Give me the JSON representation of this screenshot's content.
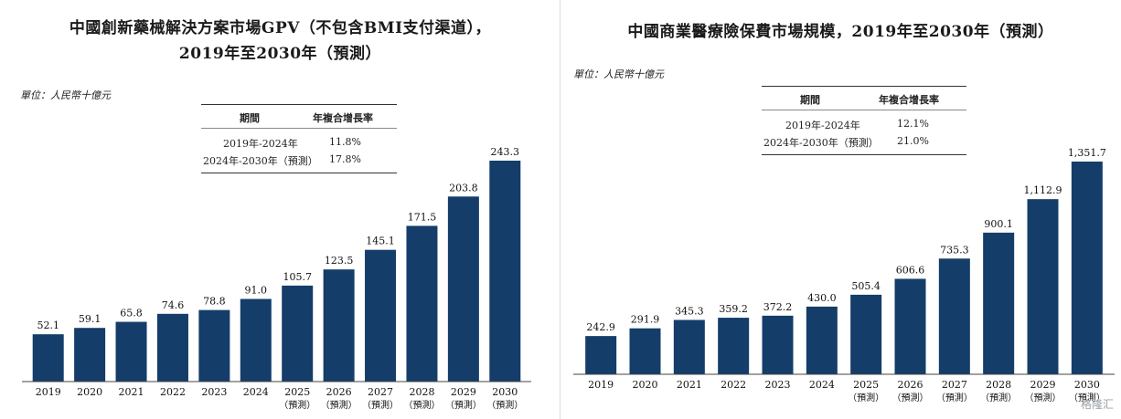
{
  "watermark": "格隆汇",
  "chart_data": [
    {
      "type": "bar",
      "title_line1": "中國創新藥械解決方案市場GPV（不包含BMI支付渠道），",
      "title_line2": "2019年至2030年（預測）",
      "unit": "單位：人民幣十億元",
      "xlabel": "",
      "ylabel": "",
      "categories": [
        "2019",
        "2020",
        "2021",
        "2022",
        "2023",
        "2024",
        "2025",
        "2026",
        "2027",
        "2028",
        "2029",
        "2030"
      ],
      "category_sublabels": [
        "",
        "",
        "",
        "",
        "",
        "",
        "（預測）",
        "（預測）",
        "（預測）",
        "（預測）",
        "（預測）",
        "（預測）"
      ],
      "values": [
        52.1,
        59.1,
        65.8,
        74.6,
        78.8,
        91.0,
        105.7,
        123.5,
        145.1,
        171.5,
        203.8,
        243.3
      ],
      "value_labels": [
        "52.1",
        "59.1",
        "65.8",
        "74.6",
        "78.8",
        "91.0",
        "105.7",
        "123.5",
        "145.1",
        "171.5",
        "203.8",
        "243.3"
      ],
      "color": "#143d69",
      "ylim": [
        0,
        243.3
      ],
      "grid": false,
      "cagr_table": {
        "headers": [
          "期間",
          "年複合增長率"
        ],
        "rows": [
          [
            "2019年-2024年",
            "11.8%"
          ],
          [
            "2024年-2030年（預測）",
            "17.8%"
          ]
        ]
      }
    },
    {
      "type": "bar",
      "title_line1": "中國商業醫療險保費市場規模，2019年至2030年（預測）",
      "title_line2": "",
      "unit": "單位：人民幣十億元",
      "xlabel": "",
      "ylabel": "",
      "categories": [
        "2019",
        "2020",
        "2021",
        "2022",
        "2023",
        "2024",
        "2025",
        "2026",
        "2027",
        "2028",
        "2029",
        "2030"
      ],
      "category_sublabels": [
        "",
        "",
        "",
        "",
        "",
        "",
        "（預測）",
        "（預測）",
        "（預測）",
        "（預測）",
        "（預測）",
        "（預測）"
      ],
      "values": [
        242.9,
        291.9,
        345.3,
        359.2,
        372.2,
        430.0,
        505.4,
        606.6,
        735.3,
        900.1,
        1112.9,
        1351.7
      ],
      "value_labels": [
        "242.9",
        "291.9",
        "345.3",
        "359.2",
        "372.2",
        "430.0",
        "505.4",
        "606.6",
        "735.3",
        "900.1",
        "1,112.9",
        "1,351.7"
      ],
      "color": "#143d69",
      "ylim": [
        0,
        1351.7
      ],
      "grid": false,
      "cagr_table": {
        "headers": [
          "期間",
          "年複合增長率"
        ],
        "rows": [
          [
            "2019年-2024年",
            "12.1%"
          ],
          [
            "2024年-2030年（預測）",
            "21.0%"
          ]
        ]
      }
    }
  ]
}
